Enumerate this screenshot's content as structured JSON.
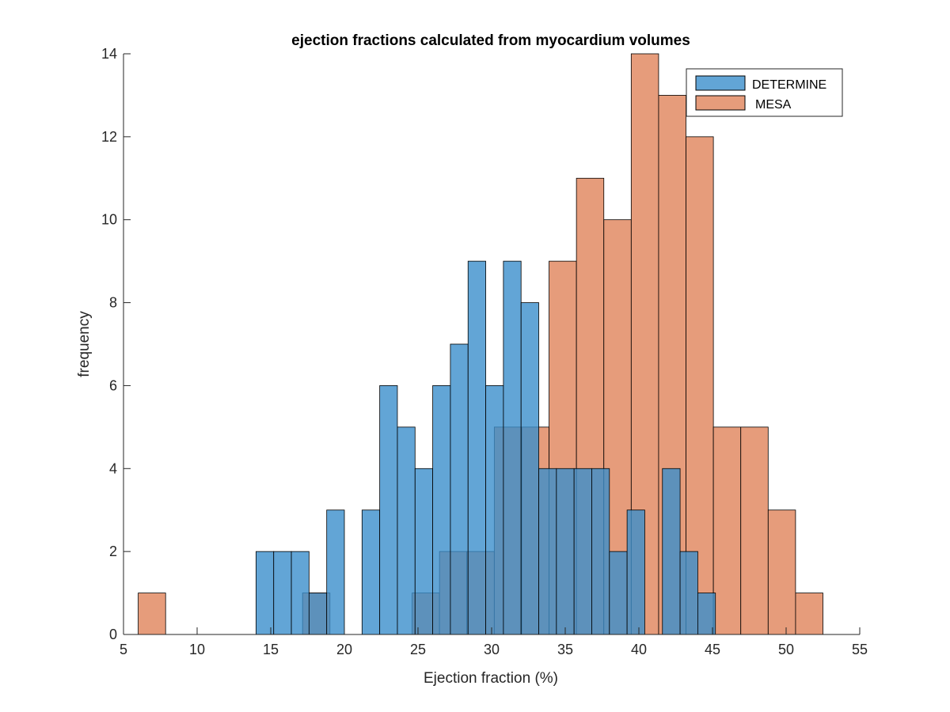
{
  "chart_data": {
    "type": "bar",
    "title": "ejection fractions calculated from myocardium volumes",
    "xlabel": "Ejection fraction (%)",
    "ylabel": "frequency",
    "xlim": [
      5,
      55
    ],
    "ylim": [
      0,
      14
    ],
    "xticks": [
      "5",
      "10",
      "15",
      "20",
      "25",
      "30",
      "35",
      "40",
      "45",
      "50",
      "55"
    ],
    "yticks": [
      "0",
      "2",
      "4",
      "6",
      "8",
      "10",
      "12",
      "14"
    ],
    "legend_position": "top-right",
    "series": [
      {
        "name": "MESA",
        "color": "#e0835a",
        "bin_width": 1.86,
        "bin_edges_start": 6.0,
        "counts": [
          1,
          0,
          0,
          0,
          0,
          0,
          1,
          0,
          0,
          0,
          1,
          2,
          2,
          5,
          5,
          9,
          11,
          10,
          14,
          13,
          12,
          5,
          5,
          3,
          1
        ]
      },
      {
        "name": "DETERMINE",
        "color": "#3b8fcc",
        "bin_width": 1.2,
        "bin_edges_start": 14.0,
        "counts": [
          2,
          2,
          2,
          1,
          3,
          0,
          3,
          6,
          5,
          4,
          6,
          7,
          9,
          6,
          9,
          8,
          4,
          4,
          4,
          4,
          2,
          3,
          0,
          4,
          2,
          1
        ]
      }
    ]
  }
}
